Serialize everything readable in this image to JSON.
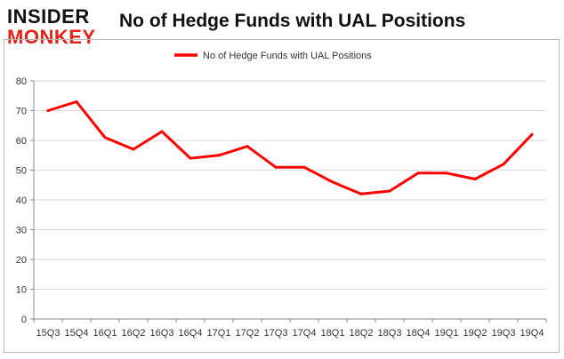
{
  "logo": {
    "line1": "INSIDER",
    "line2": "MONKEY"
  },
  "chart_data": {
    "type": "line",
    "title": "No of Hedge Funds with UAL Positions",
    "categories": [
      "15Q3",
      "15Q4",
      "16Q1",
      "16Q2",
      "16Q3",
      "16Q4",
      "17Q1",
      "17Q2",
      "17Q3",
      "17Q4",
      "18Q1",
      "18Q2",
      "18Q3",
      "18Q4",
      "19Q1",
      "19Q2",
      "19Q3",
      "19Q4"
    ],
    "series": [
      {
        "name": "No of Hedge Funds with UAL Positions",
        "values": [
          70,
          73,
          61,
          57,
          63,
          54,
          55,
          58,
          51,
          51,
          46,
          42,
          43,
          49,
          49,
          47,
          52,
          62
        ],
        "color": "#ff0000"
      }
    ],
    "ylim": [
      0,
      80
    ],
    "yticks": [
      0,
      10,
      20,
      30,
      40,
      50,
      60,
      70,
      80
    ],
    "grid": true,
    "legend": "top-center"
  }
}
